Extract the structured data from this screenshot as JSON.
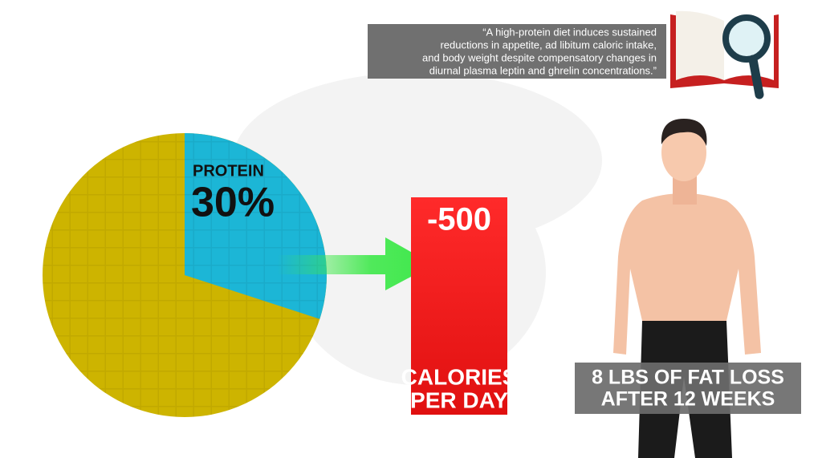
{
  "quote": {
    "lines": [
      "“A high-protein diet induces sustained",
      "reductions in appetite, ad libitum caloric intake,",
      "and body weight despite compensatory changes in",
      "diurnal plasma leptin and ghrelin concentrations.”"
    ]
  },
  "pie": {
    "label": "PROTEIN",
    "value": 30,
    "value_label": "30%"
  },
  "calories": {
    "amount": "-500",
    "lines": [
      "CALORIES",
      "PER DAY"
    ]
  },
  "result": {
    "lines": [
      "8 LBS OF FAT LOSS",
      "AFTER 12 WEEKS"
    ]
  }
}
